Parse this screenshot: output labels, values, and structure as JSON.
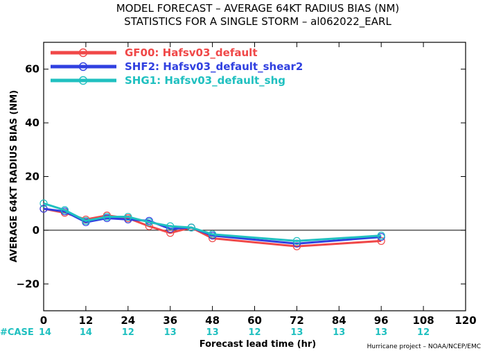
{
  "chart_data": {
    "type": "line",
    "title_line1": "MODEL FORECAST – AVERAGE 64KT RADIUS BIAS (NM)",
    "title_line2": "STATISTICS FOR A SINGLE STORM – al062022_EARL",
    "xlabel": "Forecast lead time (hr)",
    "ylabel": "AVERAGE 64KT RADIUS BIAS (NM)",
    "xlim": [
      0,
      120
    ],
    "ylim": [
      -30,
      70
    ],
    "xticks": [
      0,
      12,
      24,
      36,
      48,
      60,
      72,
      84,
      96,
      108,
      120
    ],
    "yticks": [
      -20,
      0,
      20,
      40,
      60
    ],
    "zero_line": true,
    "legend_position": "top-left",
    "series": [
      {
        "name": "GF00: Hafsv03_default",
        "color": "#f04848",
        "x": [
          0,
          6,
          12,
          18,
          24,
          30,
          36,
          42,
          48,
          72,
          96
        ],
        "y": [
          8,
          6.5,
          4,
          5.5,
          4.5,
          1.5,
          -1,
          1,
          -3,
          -6,
          -4
        ]
      },
      {
        "name": "SHF2: Hafsv03_default_shear2",
        "color": "#3040e0",
        "x": [
          0,
          6,
          12,
          18,
          24,
          30,
          36,
          42,
          48,
          72,
          96
        ],
        "y": [
          8,
          7,
          3,
          4.5,
          4,
          3.5,
          0.5,
          1,
          -2,
          -5,
          -2.5
        ]
      },
      {
        "name": "SHG1: Hafsv03_default_shg",
        "color": "#20c0c0",
        "x": [
          0,
          6,
          12,
          18,
          24,
          30,
          36,
          42,
          48,
          72,
          96
        ],
        "y": [
          10,
          7.5,
          3.5,
          5,
          5,
          3,
          1.5,
          1,
          -1.5,
          -4,
          -2
        ]
      }
    ],
    "cases": {
      "label": "#CASE",
      "x": [
        0,
        12,
        24,
        36,
        48,
        60,
        72,
        84,
        96,
        108
      ],
      "values": [
        "14",
        "14",
        "12",
        "13",
        "13",
        "12",
        "13",
        "13",
        "13",
        "12"
      ]
    },
    "credit": "Hurricane project – NOAA/NCEP/EMC"
  }
}
